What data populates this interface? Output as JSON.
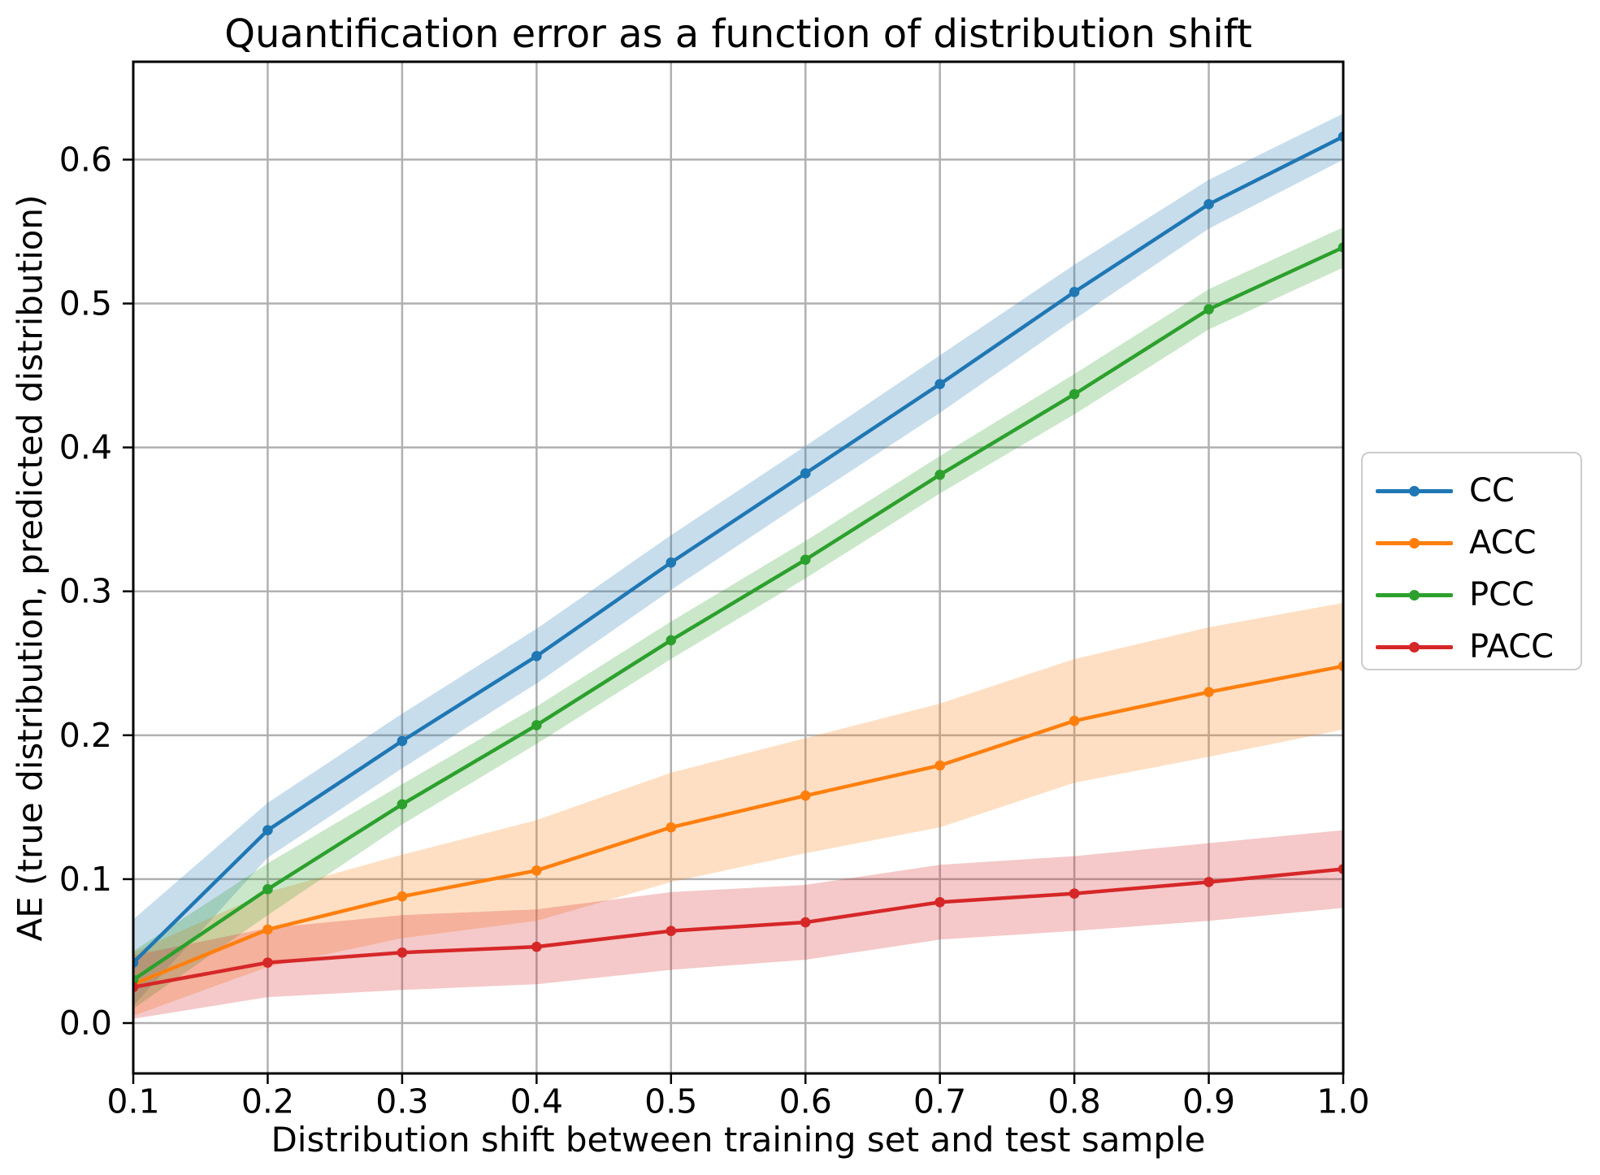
{
  "chart_data": {
    "type": "line",
    "title": "Quantification error as a function of distribution shift",
    "xlabel": "Distribution shift between training set and test sample",
    "ylabel": "AE (true distribution, predicted distribution)",
    "x": [
      0.1,
      0.2,
      0.3,
      0.4,
      0.5,
      0.6,
      0.7,
      0.8,
      0.9,
      1.0
    ],
    "xlim": [
      0.1,
      1.0
    ],
    "ylim": [
      -0.035,
      0.668
    ],
    "x_tick_labels": [
      "0.1",
      "0.2",
      "0.3",
      "0.4",
      "0.5",
      "0.6",
      "0.7",
      "0.8",
      "0.9",
      "1.0"
    ],
    "y_ticks": [
      0.0,
      0.1,
      0.2,
      0.3,
      0.4,
      0.5,
      0.6
    ],
    "y_tick_labels": [
      "0.0",
      "0.1",
      "0.2",
      "0.3",
      "0.4",
      "0.5",
      "0.6"
    ],
    "grid": true,
    "legend_position": "outside-right",
    "band_alpha": 0.25,
    "series": [
      {
        "name": "CC",
        "color": "#1f77b4",
        "values": [
          0.042,
          0.134,
          0.196,
          0.255,
          0.32,
          0.382,
          0.444,
          0.508,
          0.569,
          0.616
        ],
        "band_halfwidth": [
          0.03,
          0.019,
          0.019,
          0.019,
          0.019,
          0.019,
          0.02,
          0.019,
          0.017,
          0.016
        ]
      },
      {
        "name": "ACC",
        "color": "#ff7f0e",
        "values": [
          0.027,
          0.065,
          0.088,
          0.106,
          0.136,
          0.158,
          0.179,
          0.21,
          0.23,
          0.248
        ],
        "band_halfwidth": [
          0.022,
          0.026,
          0.029,
          0.035,
          0.038,
          0.04,
          0.043,
          0.043,
          0.045,
          0.044
        ]
      },
      {
        "name": "PCC",
        "color": "#2ca02c",
        "values": [
          0.03,
          0.093,
          0.152,
          0.207,
          0.266,
          0.322,
          0.381,
          0.437,
          0.496,
          0.539
        ],
        "band_halfwidth": [
          0.02,
          0.018,
          0.014,
          0.013,
          0.013,
          0.013,
          0.013,
          0.014,
          0.014,
          0.014
        ]
      },
      {
        "name": "PACC",
        "color": "#d62728",
        "values": [
          0.025,
          0.042,
          0.049,
          0.053,
          0.064,
          0.07,
          0.084,
          0.09,
          0.098,
          0.107
        ],
        "band_halfwidth": [
          0.022,
          0.024,
          0.026,
          0.026,
          0.027,
          0.026,
          0.026,
          0.026,
          0.027,
          0.027
        ]
      }
    ],
    "style": {
      "grid_color": "#b0b0b0",
      "spine_color": "#000000",
      "text_color": "#000000",
      "background": "#ffffff"
    }
  }
}
